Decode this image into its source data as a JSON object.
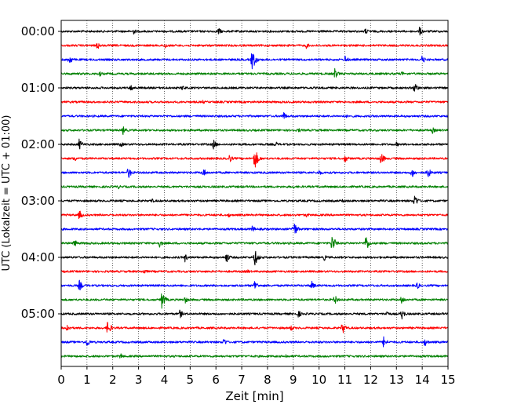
{
  "chart_data": {
    "type": "line",
    "title": "",
    "xlabel": "Zeit  [min]",
    "ylabel": "UTC (Lokalzeit = UTC + 01:00)",
    "xlim": [
      0,
      15
    ],
    "x_ticks": [
      "0",
      "1",
      "2",
      "3",
      "4",
      "5",
      "6",
      "7",
      "8",
      "9",
      "10",
      "11",
      "12",
      "13",
      "14",
      "15"
    ],
    "y_ticks": [
      "00:00",
      "01:00",
      "02:00",
      "03:00",
      "04:00",
      "05:00"
    ],
    "trace_interval_min": 15,
    "grid": "vertical dotted",
    "legend": "none",
    "colors_cycle": [
      "#000000",
      "#ff0000",
      "#0000ff",
      "#008000"
    ],
    "series": [
      {
        "start": "00:00",
        "color": "#000000",
        "events": [
          [
            2.8,
            0.25
          ],
          [
            6.1,
            0.3
          ],
          [
            11.8,
            0.25
          ],
          [
            13.9,
            0.35
          ]
        ]
      },
      {
        "start": "00:15",
        "color": "#ff0000",
        "events": [
          [
            1.4,
            0.35
          ],
          [
            4.0,
            0.3
          ],
          [
            9.5,
            0.25
          ]
        ]
      },
      {
        "start": "00:30",
        "color": "#0000ff",
        "events": [
          [
            0.3,
            0.45
          ],
          [
            7.4,
            0.9
          ],
          [
            11.0,
            0.35
          ],
          [
            14.0,
            0.35
          ]
        ]
      },
      {
        "start": "00:45",
        "color": "#008000",
        "events": [
          [
            1.5,
            0.2
          ],
          [
            10.6,
            0.45
          ],
          [
            13.2,
            0.2
          ]
        ]
      },
      {
        "start": "01:00",
        "color": "#000000",
        "events": [
          [
            2.7,
            0.3
          ],
          [
            4.7,
            0.25
          ],
          [
            13.7,
            0.5
          ]
        ]
      },
      {
        "start": "01:15",
        "color": "#ff0000",
        "events": [
          [
            5.5,
            0.15
          ]
        ]
      },
      {
        "start": "01:30",
        "color": "#0000ff",
        "events": [
          [
            8.6,
            0.4
          ],
          [
            11.0,
            0.2
          ]
        ]
      },
      {
        "start": "01:45",
        "color": "#008000",
        "events": [
          [
            2.4,
            0.35
          ],
          [
            9.2,
            0.2
          ],
          [
            14.4,
            0.25
          ]
        ]
      },
      {
        "start": "02:00",
        "color": "#000000",
        "events": [
          [
            0.7,
            0.45
          ],
          [
            2.3,
            0.25
          ],
          [
            5.9,
            0.4
          ],
          [
            8.3,
            0.25
          ],
          [
            13.0,
            0.2
          ]
        ]
      },
      {
        "start": "02:15",
        "color": "#ff0000",
        "events": [
          [
            0.5,
            0.3
          ],
          [
            6.5,
            0.4
          ],
          [
            7.5,
            0.9
          ],
          [
            11.0,
            0.35
          ],
          [
            12.4,
            0.5
          ]
        ]
      },
      {
        "start": "02:30",
        "color": "#0000ff",
        "events": [
          [
            2.6,
            0.5
          ],
          [
            5.5,
            0.4
          ],
          [
            10.0,
            0.25
          ],
          [
            13.6,
            0.45
          ],
          [
            14.2,
            0.5
          ]
        ]
      },
      {
        "start": "02:45",
        "color": "#008000",
        "events": [
          [
            2.2,
            0.2
          ],
          [
            9.0,
            0.15
          ]
        ]
      },
      {
        "start": "03:00",
        "color": "#000000",
        "events": [
          [
            3.5,
            0.2
          ],
          [
            10.9,
            0.2
          ],
          [
            13.7,
            0.55
          ]
        ]
      },
      {
        "start": "03:15",
        "color": "#ff0000",
        "events": [
          [
            0.7,
            0.4
          ],
          [
            6.5,
            0.2
          ],
          [
            9.5,
            0.2
          ]
        ]
      },
      {
        "start": "03:30",
        "color": "#0000ff",
        "events": [
          [
            7.4,
            0.3
          ],
          [
            9.0,
            0.75
          ]
        ]
      },
      {
        "start": "03:45",
        "color": "#008000",
        "events": [
          [
            0.5,
            0.35
          ],
          [
            3.8,
            0.35
          ],
          [
            10.5,
            0.75
          ],
          [
            11.8,
            0.75
          ]
        ]
      },
      {
        "start": "04:00",
        "color": "#000000",
        "events": [
          [
            4.8,
            0.35
          ],
          [
            6.4,
            0.45
          ],
          [
            7.5,
            0.7
          ],
          [
            10.2,
            0.25
          ]
        ]
      },
      {
        "start": "04:15",
        "color": "#ff0000",
        "events": [
          [
            3.2,
            0.25
          ],
          [
            7.2,
            0.2
          ]
        ]
      },
      {
        "start": "04:30",
        "color": "#0000ff",
        "events": [
          [
            0.7,
            0.45
          ],
          [
            7.5,
            0.45
          ],
          [
            9.7,
            0.4
          ],
          [
            13.8,
            0.3
          ]
        ]
      },
      {
        "start": "04:45",
        "color": "#008000",
        "events": [
          [
            3.9,
            0.7
          ],
          [
            4.8,
            0.3
          ],
          [
            10.6,
            0.4
          ],
          [
            13.2,
            0.35
          ]
        ]
      },
      {
        "start": "05:00",
        "color": "#000000",
        "events": [
          [
            4.6,
            0.35
          ],
          [
            9.2,
            0.3
          ],
          [
            12.6,
            0.3
          ],
          [
            13.2,
            0.45
          ]
        ]
      },
      {
        "start": "05:15",
        "color": "#ff0000",
        "events": [
          [
            0.2,
            0.4
          ],
          [
            1.8,
            0.6
          ],
          [
            8.9,
            0.25
          ],
          [
            10.9,
            0.5
          ]
        ]
      },
      {
        "start": "05:30",
        "color": "#0000ff",
        "events": [
          [
            1.0,
            0.4
          ],
          [
            6.3,
            0.35
          ],
          [
            12.5,
            0.45
          ],
          [
            14.1,
            0.35
          ]
        ]
      },
      {
        "start": "05:45",
        "color": "#008000",
        "events": [
          [
            2.3,
            0.25
          ],
          [
            8.7,
            0.2
          ]
        ]
      }
    ]
  }
}
